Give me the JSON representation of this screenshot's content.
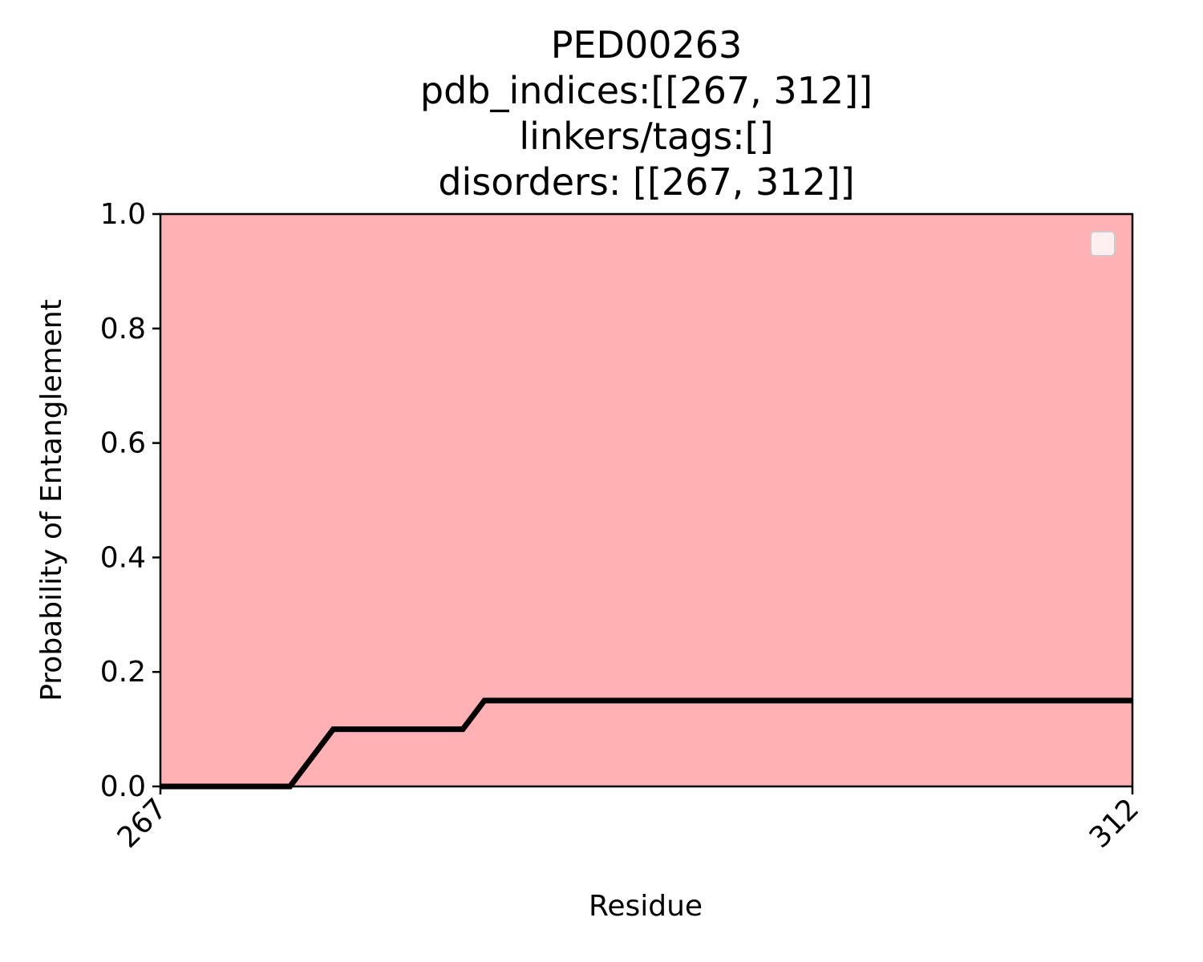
{
  "chart_data": {
    "type": "line",
    "title_lines": [
      "PED00263",
      "pdb_indices:[[267, 312]]",
      "linkers/tags:[]",
      "disorders: [[267, 312]]"
    ],
    "xlabel": "Residue",
    "ylabel": "Probability of Entanglement",
    "xlim": [
      267,
      312
    ],
    "ylim": [
      0,
      1.0
    ],
    "x_ticks": [
      267,
      312
    ],
    "x_tick_labels": [
      "267",
      "312"
    ],
    "y_ticks": [
      0.0,
      0.2,
      0.4,
      0.6,
      0.8,
      1.0
    ],
    "y_tick_labels": [
      "0.0",
      "0.2",
      "0.4",
      "0.6",
      "0.8",
      "1.0"
    ],
    "shaded_regions": [
      {
        "x_start": 267,
        "x_end": 312,
        "color": "#ffb1b3"
      }
    ],
    "series": [
      {
        "color": "#000000",
        "x": [
          267,
          273,
          275,
          281,
          282,
          312
        ],
        "y": [
          0.0,
          0.0,
          0.1,
          0.1,
          0.15,
          0.15
        ]
      }
    ],
    "legend": {
      "placement": "top-right",
      "entries": []
    },
    "grid": false
  }
}
